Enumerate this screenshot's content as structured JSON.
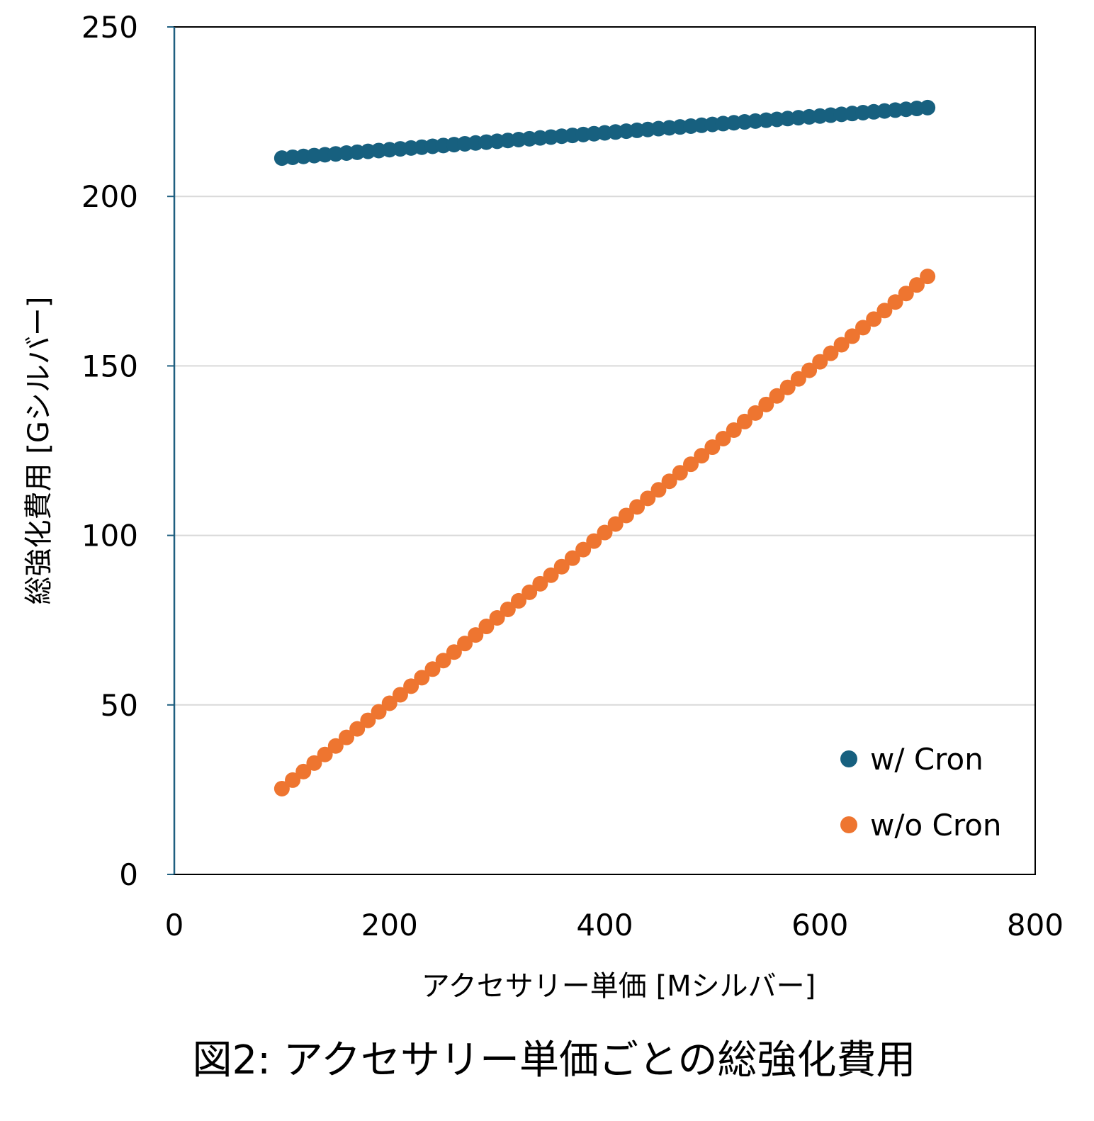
{
  "chart_data": {
    "type": "scatter",
    "title": "",
    "caption": "図2: アクセサリー単価ごとの総強化費用",
    "xlabel": "アクセサリー単価 [Mシルバー]",
    "ylabel": "総強化費用 [Gシルバー]",
    "xlim": [
      0,
      800
    ],
    "ylim": [
      0,
      250
    ],
    "xticks": [
      "0",
      "200",
      "400",
      "600",
      "800"
    ],
    "yticks": [
      "0",
      "50",
      "100",
      "150",
      "200",
      "250"
    ],
    "grid": "horizontal",
    "legend_position": "bottom-right",
    "x_start": 100,
    "x_end": 700,
    "x_step": 10,
    "series": [
      {
        "name": "w/ Cron",
        "color": "#17607f",
        "y_at_x_start": 211.3,
        "y_at_x_end": 226.2
      },
      {
        "name": "w/o Cron",
        "color": "#ee7530",
        "y_at_x_start": 25.3,
        "y_at_x_end": 176.4
      }
    ]
  }
}
